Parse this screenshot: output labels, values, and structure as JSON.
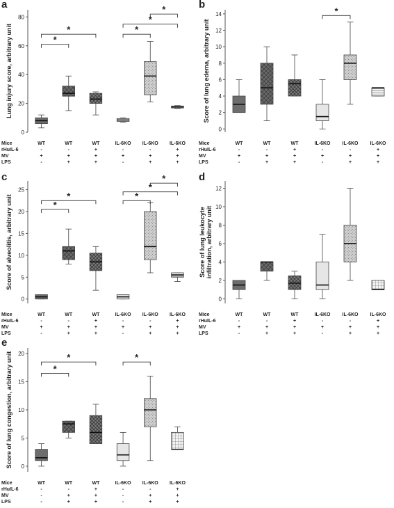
{
  "chart_data": [
    {
      "panel": "a",
      "type": "box",
      "ylabel": "Lung injury score, arbitrary unit",
      "ylim": [
        0,
        85
      ],
      "yticks": [
        0,
        20,
        40,
        60,
        80
      ],
      "row_labels": [
        "Mice",
        "rHuIL-6",
        "MV",
        "LPS"
      ],
      "groups": [
        {
          "mice": "WT",
          "rhuil6": "-",
          "mv": "+",
          "lps": "-",
          "pattern": "solid",
          "min": 3,
          "q1": 6,
          "median": 8,
          "q3": 10,
          "max": 12
        },
        {
          "mice": "WT",
          "rhuil6": "-",
          "mv": "+",
          "lps": "+",
          "pattern": "diamond",
          "min": 15,
          "q1": 25,
          "median": 27,
          "q3": 32,
          "max": 39
        },
        {
          "mice": "WT",
          "rhuil6": "+",
          "mv": "+",
          "lps": "+",
          "pattern": "cross",
          "min": 12,
          "q1": 20,
          "median": 23,
          "q3": 27,
          "max": 28
        },
        {
          "mice": "IL-6KO",
          "rhuil6": "-",
          "mv": "+",
          "lps": "-",
          "pattern": "hline",
          "min": 7,
          "q1": 7.5,
          "median": 8.5,
          "q3": 9.5,
          "max": 10
        },
        {
          "mice": "IL-6KO",
          "rhuil6": "-",
          "mv": "+",
          "lps": "+",
          "pattern": "dots",
          "min": 21,
          "q1": 26,
          "median": 39,
          "q3": 49,
          "max": 63
        },
        {
          "mice": "IL-6KO",
          "rhuil6": "+",
          "mv": "+",
          "lps": "+",
          "pattern": "grid",
          "min": 16.5,
          "q1": 16.8,
          "median": 17.5,
          "q3": 18.2,
          "max": 18.5
        }
      ],
      "brackets": [
        {
          "from": 1,
          "to": 2,
          "y": 61,
          "label": "*"
        },
        {
          "from": 1,
          "to": 3,
          "y": 68,
          "label": "*"
        },
        {
          "from": 4,
          "to": 5,
          "y": 68,
          "label": "*"
        },
        {
          "from": 4,
          "to": 6,
          "y": 75,
          "label": "*"
        },
        {
          "from": 5,
          "to": 6,
          "y": 82,
          "label": "*"
        }
      ]
    },
    {
      "panel": "b",
      "type": "box",
      "ylabel": "Score of lung edema, arbitrary unit",
      "ylim": [
        -0.4,
        14.5
      ],
      "yticks": [
        0,
        2,
        4,
        6,
        8,
        10,
        12,
        14
      ],
      "row_labels": [
        "Mice",
        "rHuIL-6",
        "MV",
        "LPS"
      ],
      "groups": [
        {
          "mice": "WT",
          "rhuil6": "-",
          "mv": "+",
          "lps": "-",
          "pattern": "solid",
          "min": 2,
          "q1": 2,
          "median": 3,
          "q3": 4,
          "max": 6
        },
        {
          "mice": "WT",
          "rhuil6": "-",
          "mv": "+",
          "lps": "+",
          "pattern": "diamond",
          "min": 1,
          "q1": 3,
          "median": 5,
          "q3": 8,
          "max": 10
        },
        {
          "mice": "WT",
          "rhuil6": "+",
          "mv": "+",
          "lps": "+",
          "pattern": "cross",
          "min": 4,
          "q1": 4,
          "median": 5.5,
          "q3": 6,
          "max": 9
        },
        {
          "mice": "IL-6KO",
          "rhuil6": "-",
          "mv": "+",
          "lps": "-",
          "pattern": "light",
          "min": 0,
          "q1": 1,
          "median": 1.5,
          "q3": 3,
          "max": 6
        },
        {
          "mice": "IL-6KO",
          "rhuil6": "-",
          "mv": "+",
          "lps": "+",
          "pattern": "dots",
          "min": 3,
          "q1": 6,
          "median": 8,
          "q3": 9,
          "max": 13
        },
        {
          "mice": "IL-6KO",
          "rhuil6": "+",
          "mv": "+",
          "lps": "+",
          "pattern": "hline",
          "min": 4,
          "q1": 4,
          "median": 5,
          "q3": 5,
          "max": 5
        }
      ],
      "brackets": [
        {
          "from": 4,
          "to": 5,
          "y": 13.8,
          "label": "*"
        }
      ]
    },
    {
      "panel": "c",
      "type": "box",
      "ylabel": "Score of alveolitis, arbitrary unit",
      "ylim": [
        -1,
        27
      ],
      "yticks": [
        0,
        5,
        10,
        15,
        20,
        25
      ],
      "row_labels": [
        "Mice",
        "rHuIL-6",
        "MV",
        "LPS"
      ],
      "groups": [
        {
          "mice": "WT",
          "rhuil6": "-",
          "mv": "+",
          "lps": "-",
          "pattern": "solid",
          "min": 0,
          "q1": 0,
          "median": 0.5,
          "q3": 1,
          "max": 1
        },
        {
          "mice": "WT",
          "rhuil6": "-",
          "mv": "+",
          "lps": "+",
          "pattern": "diamond",
          "min": 8,
          "q1": 9,
          "median": 11,
          "q3": 12,
          "max": 16
        },
        {
          "mice": "WT",
          "rhuil6": "+",
          "mv": "+",
          "lps": "+",
          "pattern": "cross",
          "min": 2,
          "q1": 6.5,
          "median": 8.5,
          "q3": 10.5,
          "max": 12
        },
        {
          "mice": "IL-6KO",
          "rhuil6": "-",
          "mv": "+",
          "lps": "-",
          "pattern": "light",
          "min": 0,
          "q1": 0,
          "median": 0.5,
          "q3": 1,
          "max": 1
        },
        {
          "mice": "IL-6KO",
          "rhuil6": "-",
          "mv": "+",
          "lps": "+",
          "pattern": "dots",
          "min": 6,
          "q1": 9,
          "median": 12,
          "q3": 20,
          "max": 22
        },
        {
          "mice": "IL-6KO",
          "rhuil6": "+",
          "mv": "+",
          "lps": "+",
          "pattern": "hline",
          "min": 4,
          "q1": 5,
          "median": 5.5,
          "q3": 6,
          "max": 6
        }
      ],
      "brackets": [
        {
          "from": 1,
          "to": 2,
          "y": 20.5,
          "label": "*"
        },
        {
          "from": 1,
          "to": 3,
          "y": 22.5,
          "label": "*"
        },
        {
          "from": 4,
          "to": 5,
          "y": 22.5,
          "label": "*"
        },
        {
          "from": 4,
          "to": 6,
          "y": 24.5,
          "label": "*"
        },
        {
          "from": 5,
          "to": 6,
          "y": 26.5,
          "label": "*"
        }
      ]
    },
    {
      "panel": "d",
      "type": "box",
      "ylabel": "Score of lung leukocyte infiltration, arbitrary unit",
      "ylim": [
        -0.5,
        12.8
      ],
      "yticks": [
        0,
        2,
        4,
        6,
        8,
        10,
        12
      ],
      "row_labels": [
        "Mice",
        "rHuIL-6",
        "MV",
        "LPS"
      ],
      "groups": [
        {
          "mice": "WT",
          "rhuil6": "-",
          "mv": "+",
          "lps": "-",
          "pattern": "solid",
          "min": 0,
          "q1": 1,
          "median": 1.5,
          "q3": 2,
          "max": 2
        },
        {
          "mice": "WT",
          "rhuil6": "-",
          "mv": "+",
          "lps": "+",
          "pattern": "diamond",
          "min": 2,
          "q1": 3,
          "median": 4,
          "q3": 4,
          "max": 4
        },
        {
          "mice": "WT",
          "rhuil6": "+",
          "mv": "+",
          "lps": "+",
          "pattern": "cross",
          "min": 0,
          "q1": 1,
          "median": 1.7,
          "q3": 2.5,
          "max": 3
        },
        {
          "mice": "IL-6KO",
          "rhuil6": "-",
          "mv": "+",
          "lps": "-",
          "pattern": "light",
          "min": 0,
          "q1": 1,
          "median": 1.5,
          "q3": 4,
          "max": 7
        },
        {
          "mice": "IL-6KO",
          "rhuil6": "-",
          "mv": "+",
          "lps": "+",
          "pattern": "dots",
          "min": 2,
          "q1": 4,
          "median": 6,
          "q3": 8,
          "max": 12
        },
        {
          "mice": "IL-6KO",
          "rhuil6": "+",
          "mv": "+",
          "lps": "+",
          "pattern": "grid",
          "min": 1,
          "q1": 1,
          "median": 1,
          "q3": 2,
          "max": 2
        }
      ],
      "brackets": []
    },
    {
      "panel": "e",
      "type": "box",
      "ylabel": "Score of lung congestion, arbitrary unit",
      "ylim": [
        -1,
        21
      ],
      "yticks": [
        0,
        5,
        10,
        15,
        20
      ],
      "row_labels": [
        "Mice",
        "rHuIL-6",
        "MV",
        "LPS"
      ],
      "groups": [
        {
          "mice": "WT",
          "rhuil6": "-",
          "mv": "-",
          "lps": "-",
          "pattern": "solid",
          "min": 0,
          "q1": 1,
          "median": 1.5,
          "q3": 3,
          "max": 4
        },
        {
          "mice": "WT",
          "rhuil6": "-",
          "mv": "+",
          "lps": "+",
          "pattern": "diamond",
          "min": 5,
          "q1": 6,
          "median": 7.5,
          "q3": 8,
          "max": 8
        },
        {
          "mice": "WT",
          "rhuil6": "+",
          "mv": "+",
          "lps": "+",
          "pattern": "cross",
          "min": 4,
          "q1": 4,
          "median": 6,
          "q3": 9,
          "max": 11
        },
        {
          "mice": "IL-6KO",
          "rhuil6": "-",
          "mv": "-",
          "lps": "-",
          "pattern": "light",
          "min": 0,
          "q1": 1,
          "median": 2,
          "q3": 4,
          "max": 6
        },
        {
          "mice": "IL-6KO",
          "rhuil6": "-",
          "mv": "+",
          "lps": "+",
          "pattern": "dots",
          "min": 1,
          "q1": 7,
          "median": 10,
          "q3": 12,
          "max": 16
        },
        {
          "mice": "IL-6KO",
          "rhuil6": "+",
          "mv": "+",
          "lps": "+",
          "pattern": "grid",
          "min": 3,
          "q1": 3,
          "median": 3,
          "q3": 6,
          "max": 7
        }
      ],
      "brackets": [
        {
          "from": 1,
          "to": 2,
          "y": 16.5,
          "label": "*"
        },
        {
          "from": 1,
          "to": 3,
          "y": 18.5,
          "label": "*"
        },
        {
          "from": 4,
          "to": 5,
          "y": 18.5,
          "label": "*"
        }
      ]
    }
  ]
}
